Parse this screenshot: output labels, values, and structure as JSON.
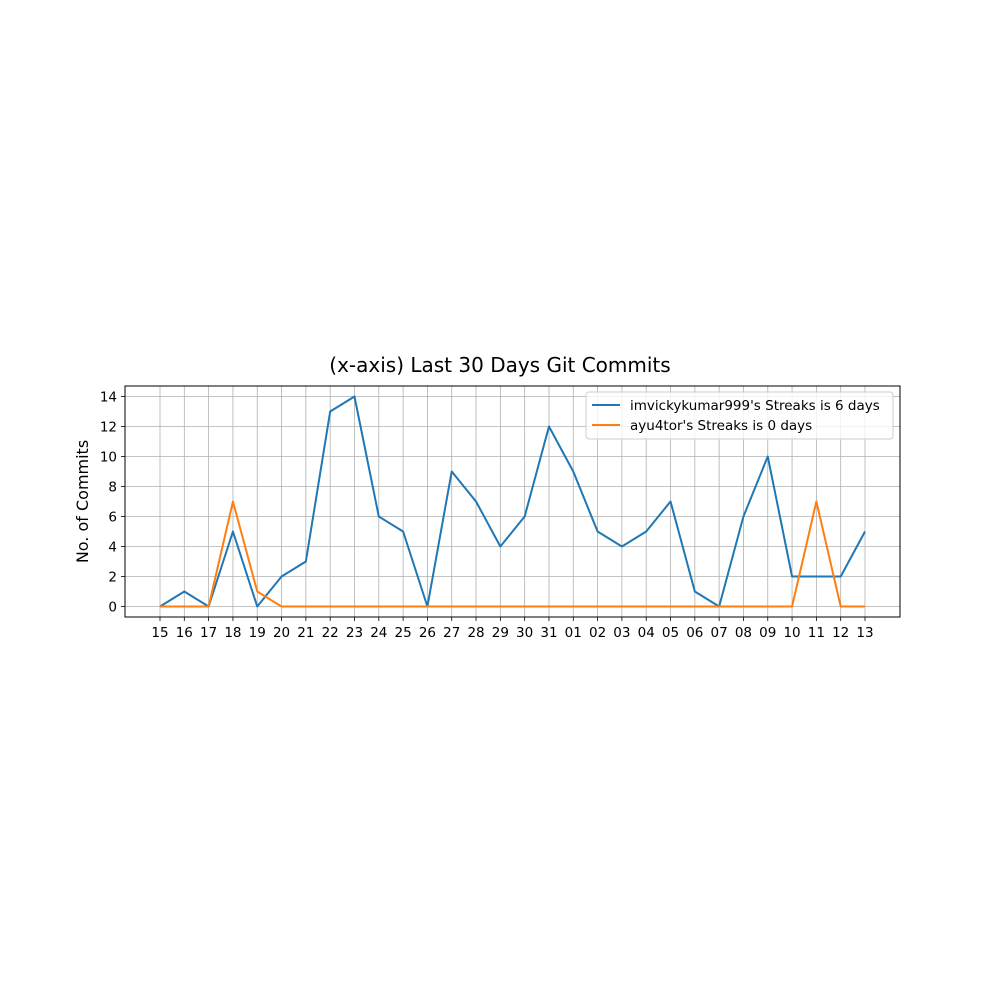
{
  "chart_data": {
    "type": "line",
    "title": "(x-axis) Last 30 Days Git Commits",
    "xlabel": "",
    "ylabel": "No. of Commits",
    "categories": [
      "15",
      "16",
      "17",
      "18",
      "19",
      "20",
      "21",
      "22",
      "23",
      "24",
      "25",
      "26",
      "27",
      "28",
      "29",
      "30",
      "31",
      "01",
      "02",
      "03",
      "04",
      "05",
      "06",
      "07",
      "08",
      "09",
      "10",
      "11",
      "12",
      "13"
    ],
    "yticks": [
      0,
      2,
      4,
      6,
      8,
      10,
      12,
      14
    ],
    "ylim": [
      -0.7,
      14.7
    ],
    "grid": true,
    "legend_position": "upper-right",
    "series": [
      {
        "name": "imvickykumar999's Streaks is 6 days",
        "color": "#1f77b4",
        "values": [
          0,
          1,
          0,
          5,
          0,
          2,
          3,
          13,
          14,
          6,
          5,
          0,
          9,
          7,
          4,
          6,
          12,
          9,
          5,
          4,
          5,
          7,
          1,
          0,
          6,
          10,
          2,
          2,
          2,
          5
        ]
      },
      {
        "name": "ayu4tor's Streaks is 0 days",
        "color": "#ff7f0e",
        "values": [
          0,
          0,
          0,
          7,
          1,
          0,
          0,
          0,
          0,
          0,
          0,
          0,
          0,
          0,
          0,
          0,
          0,
          0,
          0,
          0,
          0,
          0,
          0,
          0,
          0,
          0,
          0,
          7,
          0,
          0
        ]
      }
    ]
  }
}
